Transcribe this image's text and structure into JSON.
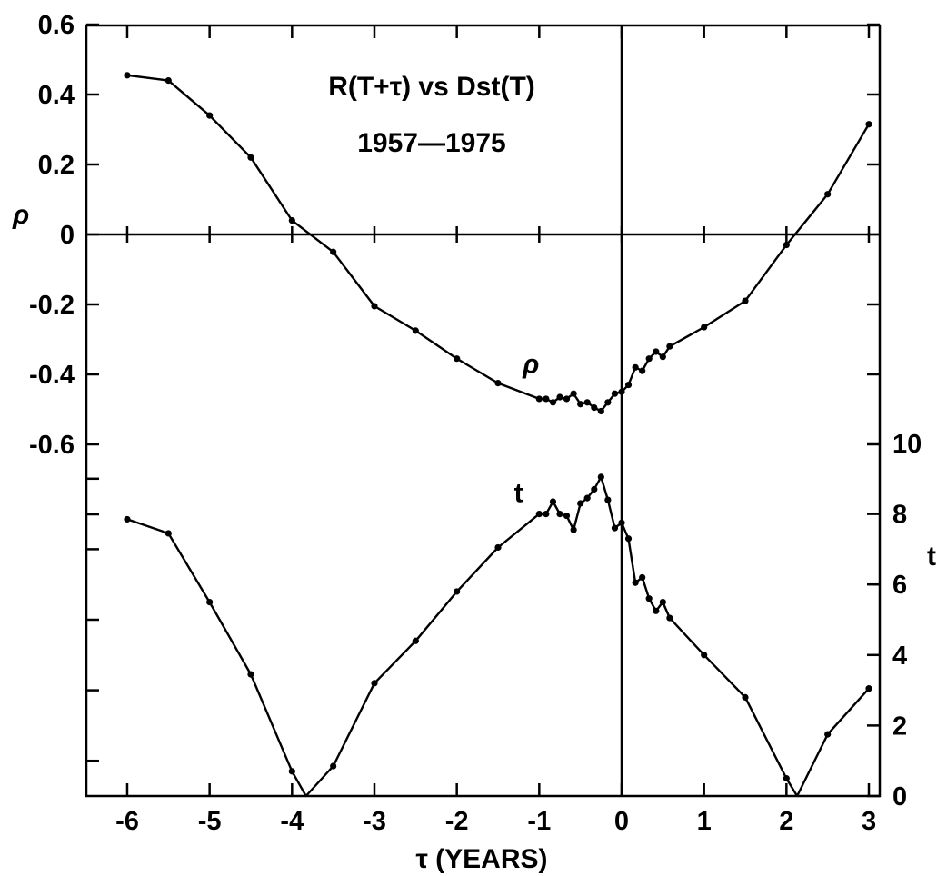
{
  "chart_data": {
    "type": "line",
    "title": "R(T+τ) vs Dst(T)",
    "subtitle": "1957—1975",
    "xlabel": "τ (YEARS)",
    "ylabel_left": "ρ",
    "ylabel_right": "t",
    "xlim": [
      -6.6,
      3.4
    ],
    "ylim_left": [
      -0.8,
      0.6
    ],
    "ylim_right": [
      0,
      10
    ],
    "x_ticks": [
      -6,
      -5,
      -4,
      -3,
      -2,
      -1,
      0,
      1,
      2,
      3
    ],
    "x_tick_labels": [
      "-6",
      "-5",
      "-4",
      "-3",
      "-2",
      "-1",
      "0",
      "1",
      "2",
      "3"
    ],
    "y_left_ticks": [
      0.6,
      0.4,
      0.2,
      0,
      -0.2,
      -0.4,
      -0.6
    ],
    "y_left_tick_labels": [
      "0.6",
      "0.4",
      "0.2",
      "0",
      "-0.2",
      "-0.4",
      "-0.6"
    ],
    "y_right_ticks": [
      10,
      8,
      6,
      4,
      2,
      0
    ],
    "y_right_tick_labels": [
      "10",
      "8",
      "6",
      "4",
      "2",
      "0"
    ],
    "grid": false,
    "reference_lines": {
      "horizontal_rho": 0,
      "vertical_tau": 0
    },
    "series": [
      {
        "name": "ρ",
        "axis": "left",
        "x": [
          -6,
          -5.5,
          -5,
          -4.5,
          -4,
          -3.5,
          -3,
          -2.5,
          -2,
          -1.5,
          -1,
          -0.917,
          -0.833,
          -0.75,
          -0.667,
          -0.583,
          -0.5,
          -0.417,
          -0.333,
          -0.25,
          -0.167,
          -0.083,
          0,
          0.083,
          0.167,
          0.25,
          0.333,
          0.417,
          0.5,
          0.583,
          1,
          1.5,
          2,
          2.5,
          3
        ],
        "y": [
          0.455,
          0.44,
          0.34,
          0.22,
          0.04,
          -0.05,
          -0.205,
          -0.275,
          -0.355,
          -0.425,
          -0.47,
          -0.47,
          -0.48,
          -0.465,
          -0.47,
          -0.455,
          -0.485,
          -0.48,
          -0.495,
          -0.505,
          -0.48,
          -0.455,
          -0.45,
          -0.43,
          -0.38,
          -0.39,
          -0.355,
          -0.335,
          -0.35,
          -0.32,
          -0.265,
          -0.19,
          -0.03,
          0.115,
          0.315
        ]
      },
      {
        "name": "t",
        "axis": "right",
        "x": [
          -6,
          -5.5,
          -5,
          -4.5,
          -4,
          -3.83,
          -3.5,
          -3,
          -2.5,
          -2,
          -1.5,
          -1,
          -0.917,
          -0.833,
          -0.75,
          -0.667,
          -0.583,
          -0.5,
          -0.417,
          -0.333,
          -0.25,
          -0.167,
          -0.083,
          0,
          0.083,
          0.167,
          0.25,
          0.333,
          0.417,
          0.5,
          0.583,
          1,
          1.5,
          2,
          2.13,
          2.5,
          3
        ],
        "y": [
          7.85,
          7.45,
          5.5,
          3.45,
          0.7,
          0,
          0.85,
          3.2,
          4.4,
          5.8,
          7.05,
          8.0,
          8.0,
          8.35,
          8.0,
          7.95,
          7.55,
          8.3,
          8.45,
          8.7,
          9.05,
          8.4,
          7.6,
          7.75,
          7.3,
          6.05,
          6.2,
          5.6,
          5.25,
          5.5,
          5.05,
          4.0,
          2.8,
          0.5,
          0,
          1.75,
          3.05
        ]
      }
    ],
    "annotations": [
      {
        "text": "ρ",
        "x": -1.1,
        "y_left": -0.37
      },
      {
        "text": "t",
        "x": -1.25,
        "y_right": 8.6
      }
    ]
  }
}
